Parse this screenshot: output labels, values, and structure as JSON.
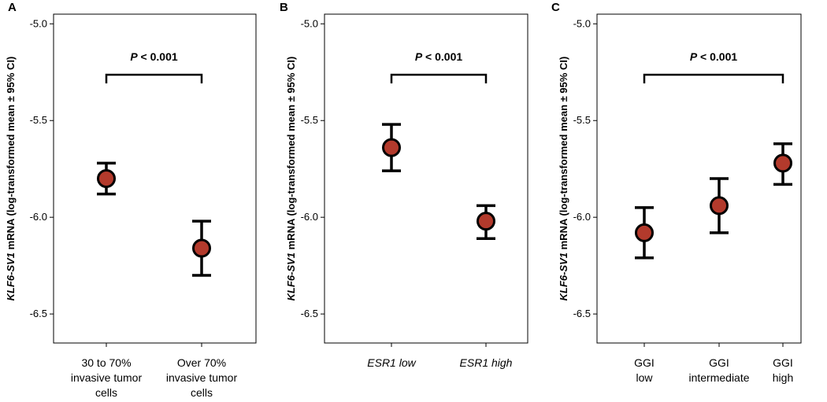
{
  "chart_data": [
    {
      "type": "scatter",
      "panel_label": "A",
      "ylabel_gene": "KLF6-SV1",
      "ylabel_rest": " mRNA (log-transformed mean ± 95% CI)",
      "ylim": [
        -6.65,
        -4.95
      ],
      "yticks": [
        "-5.0",
        "-5.5",
        "-6.0",
        "-6.5"
      ],
      "ytick_values": [
        -5.0,
        -5.5,
        -6.0,
        -6.5
      ],
      "categories": [
        {
          "lines": [
            "30 to 70%",
            "invasive tumor",
            "cells"
          ],
          "italic": false
        },
        {
          "lines": [
            "Over 70%",
            "invasive tumor",
            "cells"
          ],
          "italic": false
        }
      ],
      "series": [
        {
          "values": [
            -5.8,
            -6.16
          ],
          "ci_low": [
            -5.88,
            -6.3
          ],
          "ci_high": [
            -5.72,
            -6.02
          ]
        }
      ],
      "annotation": {
        "text_italic": "P",
        "text_rest": " < 0.001",
        "from": 0,
        "to": 1
      }
    },
    {
      "type": "scatter",
      "panel_label": "B",
      "ylabel_gene": "KLF6-SV1",
      "ylabel_rest": " mRNA (log-transformed mean ± 95% CI)",
      "ylim": [
        -6.65,
        -4.95
      ],
      "yticks": [
        "-5.0",
        "-5.5",
        "-6.0",
        "-6.5"
      ],
      "ytick_values": [
        -5.0,
        -5.5,
        -6.0,
        -6.5
      ],
      "categories": [
        {
          "lines": [
            "ESR1 low"
          ],
          "italic": true
        },
        {
          "lines": [
            "ESR1 high"
          ],
          "italic": true
        }
      ],
      "series": [
        {
          "values": [
            -5.64,
            -6.02
          ],
          "ci_low": [
            -5.76,
            -6.11
          ],
          "ci_high": [
            -5.52,
            -5.94
          ]
        }
      ],
      "annotation": {
        "text_italic": "P",
        "text_rest": " < 0.001",
        "from": 0,
        "to": 1
      }
    },
    {
      "type": "scatter",
      "panel_label": "C",
      "ylabel_gene": "KLF6-SV1",
      "ylabel_rest": " mRNA (log-transformed mean ± 95% CI)",
      "ylim": [
        -6.65,
        -4.95
      ],
      "yticks": [
        "-5.0",
        "-5.5",
        "-6.0",
        "-6.5"
      ],
      "ytick_values": [
        -5.0,
        -5.5,
        -6.0,
        -6.5
      ],
      "categories": [
        {
          "lines": [
            "GGI",
            "low"
          ],
          "italic": false
        },
        {
          "lines": [
            "GGI",
            "intermediate"
          ],
          "italic": false
        },
        {
          "lines": [
            "GGI",
            "high"
          ],
          "italic": false
        }
      ],
      "series": [
        {
          "values": [
            -6.08,
            -5.94,
            -5.72
          ],
          "ci_low": [
            -6.21,
            -6.08,
            -5.83
          ],
          "ci_high": [
            -5.95,
            -5.8,
            -5.62
          ]
        }
      ],
      "annotation": {
        "text_italic": "P",
        "text_rest": " < 0.001",
        "from": 0,
        "to": 2
      }
    }
  ],
  "colors": {
    "point_fill": "#b33a2c",
    "line": "#000000"
  }
}
